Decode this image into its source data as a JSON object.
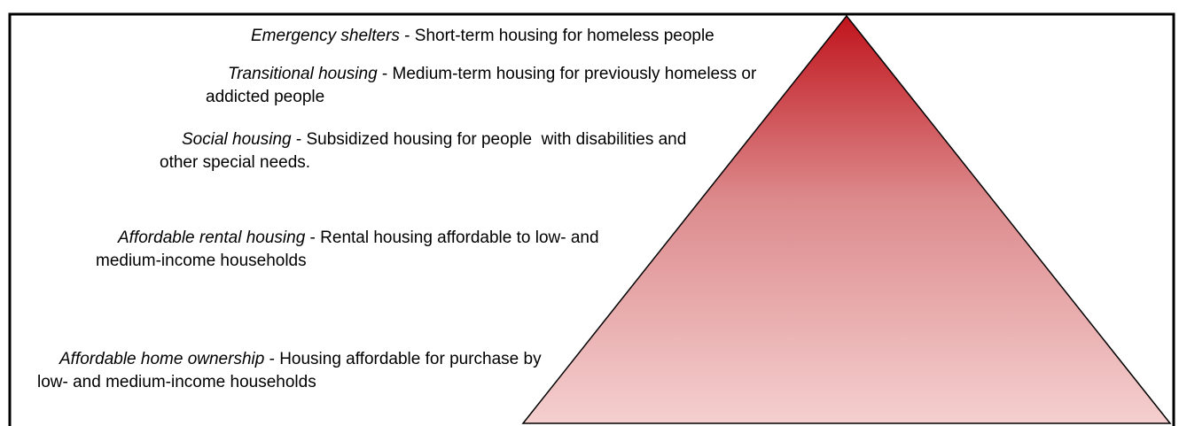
{
  "levels": [
    {
      "term": "Emergency shelters",
      "description": " - Short-term housing for homeless people"
    },
    {
      "term": "Transitional housing",
      "description": " - Medium-term housing for previously homeless or addicted people"
    },
    {
      "term": "Social housing",
      "description": " - Subsidized housing for people  with disabilities and other special needs."
    },
    {
      "term": "Affordable rental housing",
      "description": " - Rental housing affordable to low- and medium-income households"
    },
    {
      "term": "Affordable home ownership",
      "description": " - Housing affordable for purchase by low- and medium-income households"
    }
  ]
}
